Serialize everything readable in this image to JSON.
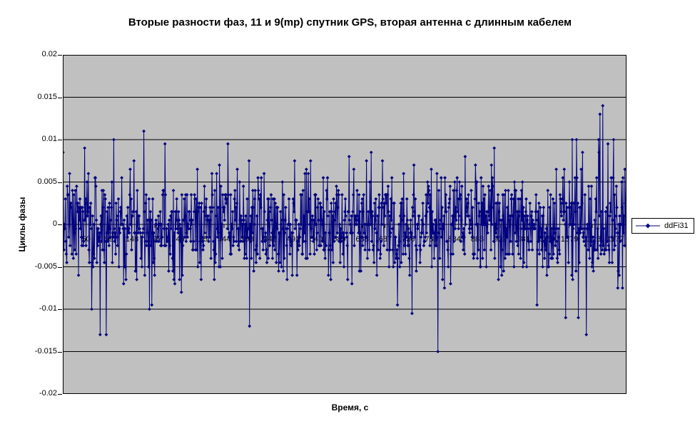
{
  "title": "Вторые разности фаз, 11 и 9(mp) спутник GPS, вторая антенна с длинным кабелем",
  "y_axis": {
    "label": "Циклы фазы",
    "tick_labels": [
      "0.02",
      "0.015",
      "0.01",
      "0.005",
      "0",
      "-0.005",
      "-0.01",
      "-0.015",
      "-0.02"
    ]
  },
  "x_axis": {
    "label": "Время, с",
    "tick_labels": [
      "1",
      "50",
      "99",
      "148",
      "197",
      "246",
      "295",
      "344",
      "393",
      "442",
      "491",
      "540",
      "589",
      "638",
      "687",
      "736",
      "785",
      "834",
      "883",
      "932",
      "981",
      "1030",
      "1079",
      "1128",
      "1177"
    ]
  },
  "legend": {
    "entries": [
      {
        "label": "ddFi31",
        "color": "#000080",
        "marker": "diamond"
      }
    ]
  },
  "colors": {
    "series": "#000080",
    "plot_background": "#C0C0C0",
    "gridlines": "#000000",
    "page_background": "#FFFFFF",
    "text": "#000000"
  },
  "chart_data": {
    "type": "line",
    "title": "Вторые разности фаз, 11 и 9(mp) спутник GPS, вторая антенна с длинным кабелем",
    "xlabel": "Время, с",
    "ylabel": "Циклы фазы",
    "ylim": [
      -0.02,
      0.02
    ],
    "y_tick_step": 0.005,
    "grid": true,
    "legend_position": "right",
    "plot_bg_color": "#C0C0C0",
    "gridline_color": "#000000",
    "n_points": 1200,
    "x_start": 1,
    "x_tick_interval": 49,
    "x_tick_labels": [
      "1",
      "50",
      "99",
      "148",
      "197",
      "246",
      "295",
      "344",
      "393",
      "442",
      "491",
      "540",
      "589",
      "638",
      "687",
      "736",
      "785",
      "834",
      "883",
      "932",
      "981",
      "1030",
      "1079",
      "1128",
      "1177"
    ],
    "series": [
      {
        "name": "ddFi31",
        "color": "#000080",
        "marker": "diamond",
        "marker_size": 5,
        "line_width": 1,
        "values_model": {
          "description": "zero-mean quantized double-difference phase noise, cycles",
          "mean": 0,
          "std": 0.003,
          "quantization": 0.0005,
          "clip": 0.0095,
          "seed": 7
        },
        "notable_points": [
          {
            "x": 62,
            "y": -0.01
          },
          {
            "x": 80,
            "y": -0.013
          },
          {
            "x": 93,
            "y": -0.013
          },
          {
            "x": 109,
            "y": 0.01
          },
          {
            "x": 173,
            "y": 0.011
          },
          {
            "x": 185,
            "y": -0.01
          },
          {
            "x": 398,
            "y": -0.012
          },
          {
            "x": 744,
            "y": -0.0105
          },
          {
            "x": 799,
            "y": -0.015
          },
          {
            "x": 1071,
            "y": -0.011
          },
          {
            "x": 1085,
            "y": 0.01
          },
          {
            "x": 1094,
            "y": 0.01
          },
          {
            "x": 1098,
            "y": -0.011
          },
          {
            "x": 1115,
            "y": -0.013
          },
          {
            "x": 1141,
            "y": 0.01
          },
          {
            "x": 1144,
            "y": 0.013
          },
          {
            "x": 1150,
            "y": 0.014
          },
          {
            "x": 1173,
            "y": 0.01
          }
        ]
      }
    ]
  }
}
